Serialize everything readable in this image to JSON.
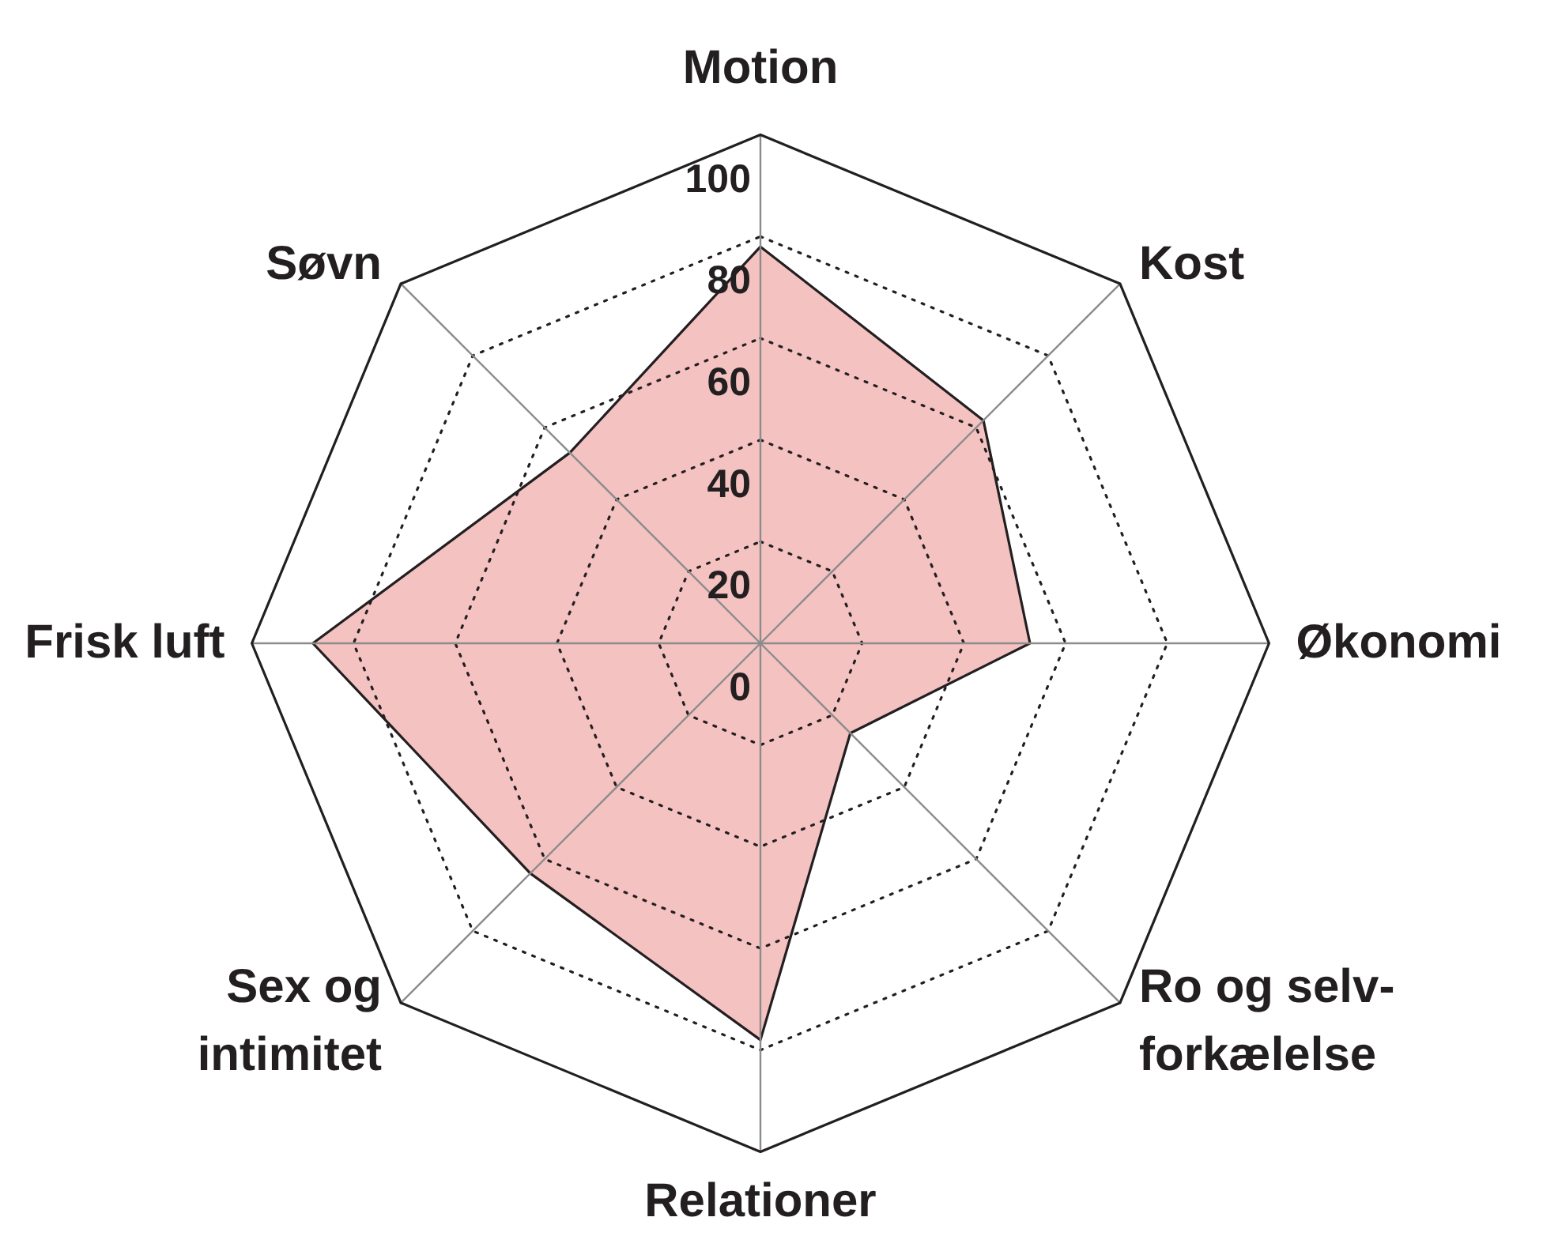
{
  "chart_data": {
    "type": "radar",
    "categories": [
      "Motion",
      "Kost",
      "Økonomi",
      "Ro og selv-\nforkælelse",
      "Relationer",
      "Sex og\nintimitet",
      "Frisk luft",
      "Søvn"
    ],
    "series": [
      {
        "color": "#f4c2c1",
        "values": [
          78,
          62,
          53,
          25,
          78,
          64,
          88,
          53
        ]
      }
    ],
    "ylim": [
      0,
      100
    ],
    "yticks": [
      0,
      20,
      40,
      60,
      80,
      100
    ],
    "grid": true
  }
}
